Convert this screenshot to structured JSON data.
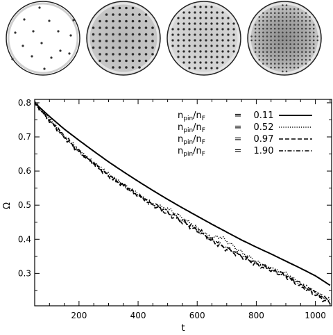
{
  "panels": [
    {
      "pattern": "sparse"
    },
    {
      "pattern": "grid-medium"
    },
    {
      "pattern": "grid-dense"
    },
    {
      "pattern": "grid-very-dense"
    }
  ],
  "chart_data": {
    "type": "line",
    "title": "",
    "xlabel": "t",
    "ylabel": "Ω",
    "xlim": [
      50,
      1055
    ],
    "ylim": [
      0.205,
      0.81
    ],
    "xticks": [
      200,
      400,
      600,
      800,
      1000
    ],
    "yticks": [
      0.3,
      0.4,
      0.5,
      0.6,
      0.7,
      0.8
    ],
    "xtick_labels": [
      "200",
      "400",
      "600",
      "800",
      "1000"
    ],
    "ytick_labels": [
      "0.3",
      "0.4",
      "0.5",
      "0.6",
      "0.7",
      "0.8"
    ],
    "legend_position": "top-right",
    "series": [
      {
        "name_main": "n",
        "name_sub1": "pin",
        "name_mid": "/n",
        "name_sub2": "F",
        "eq": "=",
        "value": "0.11",
        "style": "solid",
        "x": [
          50,
          100,
          150,
          200,
          250,
          300,
          350,
          400,
          450,
          500,
          550,
          600,
          650,
          700,
          750,
          800,
          850,
          900,
          950,
          1000,
          1050
        ],
        "y": [
          0.8,
          0.76,
          0.723,
          0.69,
          0.658,
          0.627,
          0.598,
          0.57,
          0.543,
          0.517,
          0.492,
          0.468,
          0.444,
          0.421,
          0.398,
          0.377,
          0.357,
          0.336,
          0.315,
          0.293,
          0.265
        ]
      },
      {
        "name_main": "n",
        "name_sub1": "pin",
        "name_mid": "/n",
        "name_sub2": "F",
        "eq": "=",
        "value": "0.52",
        "style": "dotted",
        "x": [
          50,
          100,
          150,
          200,
          250,
          300,
          350,
          400,
          450,
          500,
          550,
          600,
          650,
          670,
          700,
          750,
          800,
          850,
          900,
          950,
          1000,
          1050
        ],
        "y": [
          0.8,
          0.752,
          0.7,
          0.66,
          0.623,
          0.59,
          0.56,
          0.532,
          0.5,
          0.49,
          0.462,
          0.432,
          0.4,
          0.41,
          0.395,
          0.362,
          0.335,
          0.312,
          0.3,
          0.268,
          0.245,
          0.22
        ]
      },
      {
        "name_main": "n",
        "name_sub1": "pin",
        "name_mid": "/n",
        "name_sub2": "F",
        "eq": "=",
        "value": "0.97",
        "style": "dashed",
        "x": [
          50,
          100,
          150,
          200,
          250,
          300,
          350,
          400,
          450,
          500,
          550,
          600,
          650,
          700,
          750,
          800,
          850,
          900,
          950,
          1000,
          1050
        ],
        "y": [
          0.8,
          0.748,
          0.7,
          0.655,
          0.622,
          0.585,
          0.558,
          0.528,
          0.5,
          0.475,
          0.45,
          0.425,
          0.395,
          0.37,
          0.35,
          0.325,
          0.31,
          0.29,
          0.262,
          0.238,
          0.21
        ]
      },
      {
        "name_main": "n",
        "name_sub1": "pin",
        "name_mid": "/n",
        "name_sub2": "F",
        "eq": "=",
        "value": "1.90",
        "style": "dashdot",
        "x": [
          50,
          100,
          150,
          200,
          250,
          300,
          350,
          400,
          450,
          500,
          550,
          600,
          650,
          700,
          750,
          800,
          850,
          900,
          950,
          1000,
          1050
        ],
        "y": [
          0.8,
          0.75,
          0.702,
          0.658,
          0.622,
          0.588,
          0.558,
          0.53,
          0.505,
          0.48,
          0.455,
          0.43,
          0.4,
          0.375,
          0.353,
          0.33,
          0.315,
          0.295,
          0.27,
          0.245,
          0.218
        ]
      }
    ]
  }
}
